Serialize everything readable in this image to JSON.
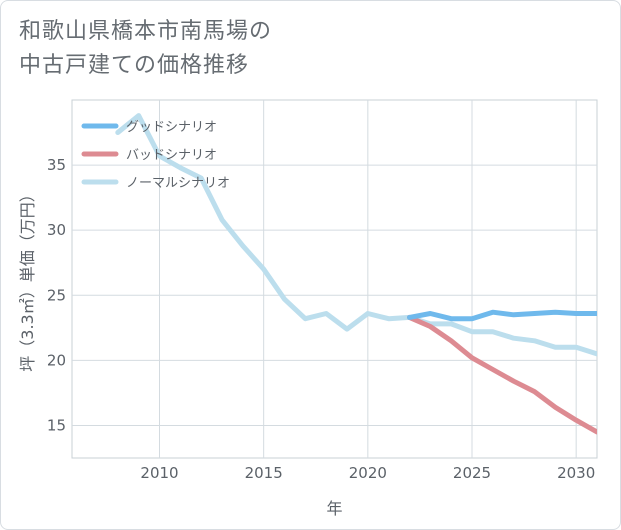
{
  "header": {
    "title_line1": "和歌山県橋本市南馬場の",
    "title_line2": "中古戸建ての価格推移"
  },
  "chart_data": {
    "type": "line",
    "title": "和歌山県橋本市南馬場の中古戸建ての価格推移",
    "xlabel": "年",
    "ylabel": "坪（3.3㎡）単価（万円）",
    "xlim": [
      2005.8,
      2031
    ],
    "ylim": [
      12.5,
      40
    ],
    "x_ticks": [
      2010,
      2015,
      2020,
      2025,
      2030
    ],
    "y_ticks": [
      15,
      20,
      25,
      30,
      35
    ],
    "grid": true,
    "legend_position": "top-left",
    "series": [
      {
        "name": "グッドシナリオ",
        "color": "#6fb9ec",
        "x": [
          2022,
          2023,
          2024,
          2025,
          2026,
          2027,
          2028,
          2029,
          2030,
          2031
        ],
        "values": [
          23.3,
          23.6,
          23.2,
          23.2,
          23.7,
          23.5,
          23.6,
          23.7,
          23.6,
          23.6
        ]
      },
      {
        "name": "バッドシナリオ",
        "color": "#dd8b92",
        "x": [
          2022,
          2023,
          2024,
          2025,
          2026,
          2027,
          2028,
          2029,
          2030,
          2031
        ],
        "values": [
          23.3,
          22.6,
          21.5,
          20.2,
          19.3,
          18.4,
          17.6,
          16.4,
          15.4,
          14.5
        ]
      },
      {
        "name": "ノーマルシナリオ",
        "color": "#bcdeed",
        "x": [
          2008,
          2009,
          2010,
          2011,
          2012,
          2013,
          2014,
          2015,
          2016,
          2017,
          2018,
          2019,
          2020,
          2021,
          2022,
          2023,
          2024,
          2025,
          2026,
          2027,
          2028,
          2029,
          2030,
          2031
        ],
        "values": [
          37.5,
          38.8,
          35.7,
          34.8,
          34.0,
          30.8,
          28.8,
          27.0,
          24.7,
          23.2,
          23.6,
          22.4,
          23.6,
          23.2,
          23.3,
          22.8,
          22.8,
          22.2,
          22.2,
          21.7,
          21.5,
          21.0,
          21.0,
          20.5
        ]
      }
    ]
  }
}
